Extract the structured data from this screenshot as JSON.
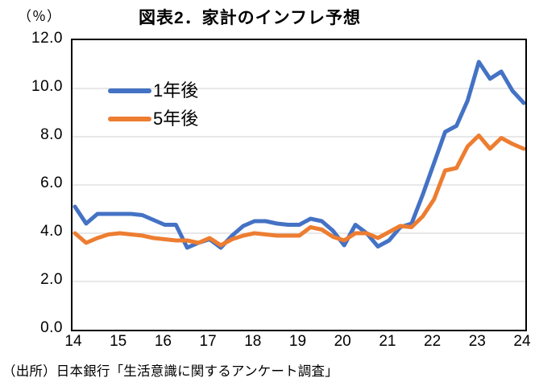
{
  "chart_data": {
    "type": "line",
    "title": "図表2．家計のインフレ予想",
    "unit_label": "（％）",
    "source": "（出所）日本銀行「生活意識に関するアンケート調査」",
    "x_tick_labels": [
      "14",
      "15",
      "16",
      "17",
      "18",
      "19",
      "20",
      "21",
      "22",
      "23",
      "24"
    ],
    "quarters": [
      "14Q1",
      "14Q2",
      "14Q3",
      "14Q4",
      "15Q1",
      "15Q2",
      "15Q3",
      "15Q4",
      "16Q1",
      "16Q2",
      "16Q3",
      "16Q4",
      "17Q1",
      "17Q2",
      "17Q3",
      "17Q4",
      "18Q1",
      "18Q2",
      "18Q3",
      "18Q4",
      "19Q1",
      "19Q2",
      "19Q3",
      "19Q4",
      "20Q1",
      "20Q2",
      "20Q3",
      "20Q4",
      "21Q1",
      "21Q2",
      "21Q3",
      "21Q4",
      "22Q1",
      "22Q2",
      "22Q3",
      "22Q4",
      "23Q1",
      "23Q2",
      "23Q3",
      "23Q4",
      "24Q1"
    ],
    "series": [
      {
        "name": "1年後",
        "color": "#4472C4",
        "values": [
          5.1,
          4.4,
          4.8,
          4.8,
          4.8,
          4.8,
          4.75,
          4.55,
          4.35,
          4.35,
          3.4,
          3.6,
          3.75,
          3.4,
          3.9,
          4.3,
          4.5,
          4.5,
          4.4,
          4.35,
          4.35,
          4.6,
          4.5,
          4.1,
          3.5,
          4.35,
          4.0,
          3.45,
          3.7,
          4.25,
          4.4,
          5.6,
          6.9,
          8.2,
          8.45,
          9.5,
          11.1,
          10.4,
          10.7,
          9.9,
          9.4
        ]
      },
      {
        "name": "5年後",
        "color": "#ED7D31",
        "values": [
          4.0,
          3.6,
          3.8,
          3.95,
          4.0,
          3.95,
          3.9,
          3.8,
          3.75,
          3.7,
          3.7,
          3.6,
          3.8,
          3.5,
          3.75,
          3.9,
          4.0,
          3.95,
          3.9,
          3.9,
          3.9,
          4.25,
          4.15,
          3.85,
          3.7,
          4.0,
          4.0,
          3.8,
          4.05,
          4.3,
          4.25,
          4.7,
          5.4,
          6.6,
          6.7,
          7.6,
          8.05,
          7.5,
          7.95,
          7.7,
          7.5
        ]
      }
    ],
    "ylim": [
      0,
      12
    ],
    "y_tick_values": [
      0,
      2,
      4,
      6,
      8,
      10,
      12
    ],
    "y_tick_labels": [
      "0.0",
      "2.0",
      "4.0",
      "6.0",
      "8.0",
      "10.0",
      "12.0"
    ],
    "grid_values": [
      2,
      4,
      6,
      8,
      10
    ],
    "grid_on": true,
    "grid_color": "#D9D9D9",
    "frame_color": "#000000",
    "legend_position": "upper-left-inside",
    "line_width": 5
  }
}
